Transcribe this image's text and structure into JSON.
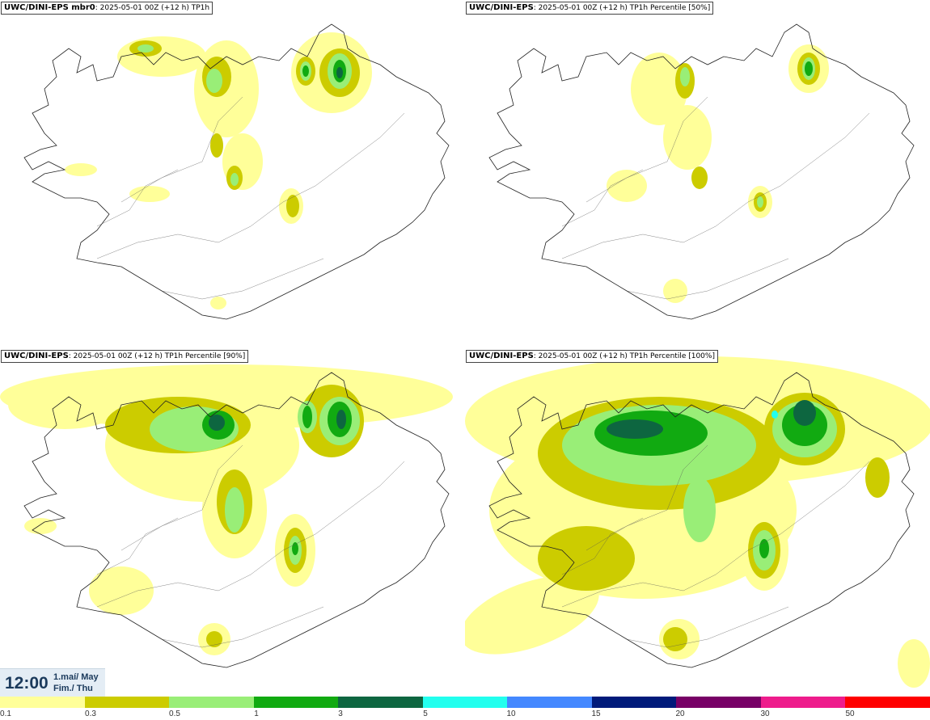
{
  "panels": [
    {
      "model": "UWC/DINI-EPS mbr0",
      "rest": ": 2025-05-01 00Z (+12 h) TP1h"
    },
    {
      "model": "UWC/DINI-EPS",
      "rest": ": 2025-05-01 00Z (+12 h) TP1h Percentile [50%]"
    },
    {
      "model": "UWC/DINI-EPS",
      "rest": ": 2025-05-01 00Z (+12 h) TP1h Percentile [90%]"
    },
    {
      "model": "UWC/DINI-EPS",
      "rest": ": 2025-05-01 00Z (+12 h) TP1h Percentile [100%]"
    }
  ],
  "time": {
    "clock": "12:00",
    "date_line1": "1.maí/ May",
    "date_line2": "Fim./ Thu"
  },
  "legend": {
    "colors": [
      "#ffff99",
      "#cccc00",
      "#99ee77",
      "#11aa11",
      "#0d6640",
      "#22ffee",
      "#4488ff",
      "#001a7a",
      "#770066",
      "#ee1c8c",
      "#ff0000"
    ],
    "ticks": [
      "0.1",
      "0.3",
      "0.5",
      "1",
      "3",
      "5",
      "10",
      "15",
      "20",
      "30",
      "50"
    ]
  }
}
